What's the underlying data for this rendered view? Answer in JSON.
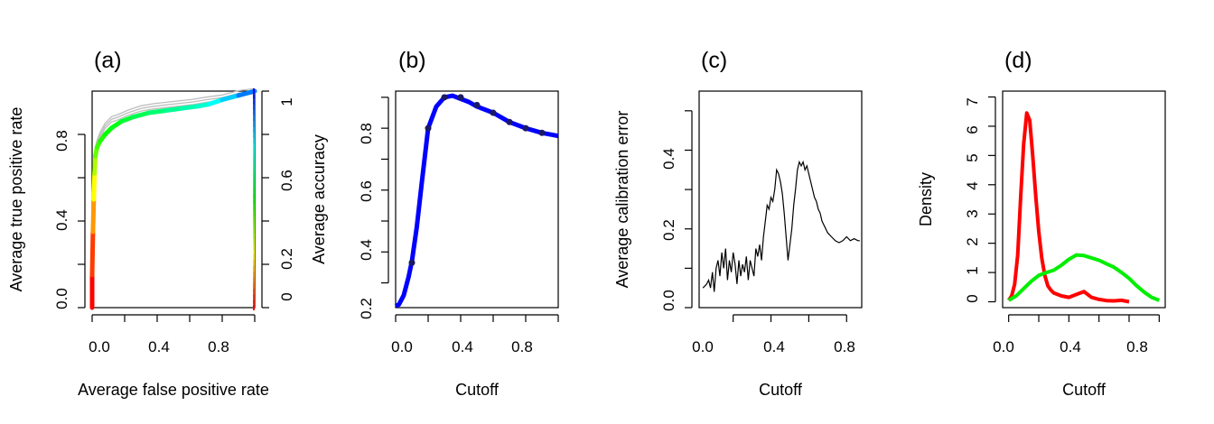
{
  "chart_data": [
    {
      "type": "line",
      "panel_label": "(a)",
      "xlabel": "Average false positive rate",
      "ylabel": "Average true positive rate",
      "y2label": "Average accuracy",
      "xlim": [
        0,
        1
      ],
      "ylim": [
        0,
        1
      ],
      "xticks": [
        "0.0",
        "0.4",
        "0.8"
      ],
      "yticks": [
        "0.0",
        "0.4",
        "0.8"
      ],
      "y2ticks": [
        "0",
        "0.2",
        "0.6",
        "1"
      ],
      "colorbar": "rainbow (red at 0 to blue at 1)",
      "series": [
        {
          "color": "#bdbdbd",
          "x": [
            0.0,
            0.0,
            0.01,
            0.02,
            0.03,
            0.05,
            0.08,
            0.12,
            0.16,
            0.22,
            0.3,
            0.38,
            0.5,
            0.62,
            0.7,
            0.8,
            0.9,
            1.0
          ],
          "y": [
            0.0,
            0.4,
            0.62,
            0.73,
            0.76,
            0.8,
            0.84,
            0.87,
            0.88,
            0.9,
            0.92,
            0.93,
            0.94,
            0.95,
            0.96,
            0.97,
            0.99,
            1.0
          ]
        },
        {
          "x": [
            0.0,
            0.0,
            0.005,
            0.01,
            0.015,
            0.02,
            0.03,
            0.05,
            0.08,
            0.12,
            0.18,
            0.25,
            0.35,
            0.45,
            0.55,
            0.65,
            0.72,
            0.8,
            0.9,
            1.0
          ],
          "y": [
            0.0,
            0.15,
            0.35,
            0.5,
            0.62,
            0.7,
            0.74,
            0.77,
            0.8,
            0.83,
            0.86,
            0.88,
            0.9,
            0.91,
            0.92,
            0.93,
            0.94,
            0.96,
            0.98,
            1.0
          ],
          "c": [
            0.0,
            0.06,
            0.15,
            0.25,
            0.33,
            0.4,
            0.44,
            0.47,
            0.5,
            0.52,
            0.55,
            0.58,
            0.61,
            0.64,
            0.67,
            0.7,
            0.74,
            0.8,
            0.88,
            0.96
          ]
        }
      ]
    },
    {
      "type": "line",
      "panel_label": "(b)",
      "xlabel": "Cutoff",
      "ylabel": "Average accuracy",
      "xlim": [
        0,
        1
      ],
      "ylim": [
        0.22,
        0.92
      ],
      "xticks": [
        "0.0",
        "0.4",
        "0.8"
      ],
      "yticks": [
        "0.2",
        "0.4",
        "0.6",
        "0.8"
      ],
      "series": [
        {
          "color": "#0000ff",
          "x": [
            0.0,
            0.02,
            0.05,
            0.08,
            0.1,
            0.13,
            0.16,
            0.2,
            0.25,
            0.3,
            0.35,
            0.4,
            0.45,
            0.5,
            0.6,
            0.7,
            0.8,
            0.9,
            1.0
          ],
          "y": [
            0.225,
            0.23,
            0.26,
            0.32,
            0.37,
            0.48,
            0.62,
            0.8,
            0.87,
            0.9,
            0.905,
            0.895,
            0.885,
            0.87,
            0.85,
            0.82,
            0.8,
            0.785,
            0.775
          ]
        }
      ],
      "points": {
        "x": [
          0.1,
          0.2,
          0.3,
          0.4,
          0.5,
          0.6,
          0.7,
          0.8,
          0.9
        ],
        "y": [
          0.365,
          0.8,
          0.9,
          0.9,
          0.875,
          0.85,
          0.82,
          0.8,
          0.785
        ]
      }
    },
    {
      "type": "line",
      "panel_label": "(c)",
      "xlabel": "Cutoff",
      "ylabel": "Average calibration error",
      "xlim": [
        0.02,
        0.88
      ],
      "ylim": [
        0,
        0.55
      ],
      "xticks": [
        "0.0",
        "0.4",
        "0.8"
      ],
      "yticks": [
        "0.0",
        "0.2",
        "0.4"
      ],
      "series": [
        {
          "color": "#000000",
          "x": [
            0.04,
            0.06,
            0.07,
            0.08,
            0.09,
            0.1,
            0.11,
            0.12,
            0.13,
            0.14,
            0.15,
            0.16,
            0.17,
            0.18,
            0.19,
            0.2,
            0.21,
            0.22,
            0.23,
            0.24,
            0.25,
            0.26,
            0.27,
            0.28,
            0.29,
            0.3,
            0.31,
            0.32,
            0.33,
            0.34,
            0.35,
            0.36,
            0.37,
            0.38,
            0.39,
            0.4,
            0.41,
            0.42,
            0.43,
            0.44,
            0.45,
            0.46,
            0.47,
            0.48,
            0.49,
            0.5,
            0.51,
            0.52,
            0.53,
            0.54,
            0.55,
            0.56,
            0.57,
            0.58,
            0.59,
            0.6,
            0.61,
            0.62,
            0.63,
            0.64,
            0.65,
            0.66,
            0.67,
            0.68,
            0.69,
            0.7,
            0.72,
            0.74,
            0.76,
            0.78,
            0.8,
            0.82,
            0.84,
            0.86,
            0.87
          ],
          "y": [
            0.05,
            0.06,
            0.07,
            0.05,
            0.09,
            0.04,
            0.1,
            0.12,
            0.08,
            0.14,
            0.1,
            0.15,
            0.07,
            0.12,
            0.09,
            0.14,
            0.11,
            0.06,
            0.12,
            0.08,
            0.11,
            0.09,
            0.13,
            0.07,
            0.12,
            0.1,
            0.08,
            0.15,
            0.13,
            0.16,
            0.12,
            0.18,
            0.22,
            0.26,
            0.25,
            0.28,
            0.27,
            0.3,
            0.35,
            0.34,
            0.32,
            0.29,
            0.24,
            0.18,
            0.12,
            0.16,
            0.2,
            0.26,
            0.3,
            0.35,
            0.37,
            0.36,
            0.37,
            0.35,
            0.36,
            0.34,
            0.32,
            0.3,
            0.28,
            0.27,
            0.25,
            0.24,
            0.22,
            0.21,
            0.2,
            0.19,
            0.18,
            0.17,
            0.165,
            0.17,
            0.18,
            0.17,
            0.175,
            0.17,
            0.17
          ]
        }
      ]
    },
    {
      "type": "line",
      "panel_label": "(d)",
      "xlabel": "Cutoff",
      "ylabel": "Density",
      "xlim": [
        -0.04,
        1.04
      ],
      "ylim": [
        -0.2,
        7.2
      ],
      "xticks": [
        "0.0",
        "0.4",
        "0.8"
      ],
      "yticks": [
        "0",
        "1",
        "2",
        "3",
        "4",
        "5",
        "6",
        "7"
      ],
      "series": [
        {
          "color": "#ff0000",
          "x": [
            0.0,
            0.02,
            0.04,
            0.06,
            0.08,
            0.1,
            0.12,
            0.14,
            0.16,
            0.18,
            0.2,
            0.22,
            0.24,
            0.26,
            0.28,
            0.3,
            0.35,
            0.4,
            0.45,
            0.5,
            0.55,
            0.6,
            0.65,
            0.7,
            0.75,
            0.8
          ],
          "y": [
            0.05,
            0.2,
            0.6,
            1.6,
            3.6,
            5.4,
            6.45,
            6.2,
            5.0,
            3.6,
            2.4,
            1.5,
            0.9,
            0.55,
            0.4,
            0.3,
            0.2,
            0.15,
            0.25,
            0.35,
            0.15,
            0.08,
            0.04,
            0.03,
            0.05,
            0.0
          ]
        },
        {
          "color": "#00ee00",
          "x": [
            0.0,
            0.05,
            0.1,
            0.15,
            0.2,
            0.25,
            0.3,
            0.35,
            0.4,
            0.45,
            0.5,
            0.55,
            0.6,
            0.65,
            0.7,
            0.75,
            0.8,
            0.85,
            0.9,
            0.95,
            1.0
          ],
          "y": [
            0.05,
            0.2,
            0.45,
            0.7,
            0.9,
            1.0,
            1.08,
            1.25,
            1.45,
            1.6,
            1.58,
            1.5,
            1.42,
            1.3,
            1.18,
            1.0,
            0.8,
            0.55,
            0.33,
            0.15,
            0.05
          ]
        }
      ]
    }
  ]
}
